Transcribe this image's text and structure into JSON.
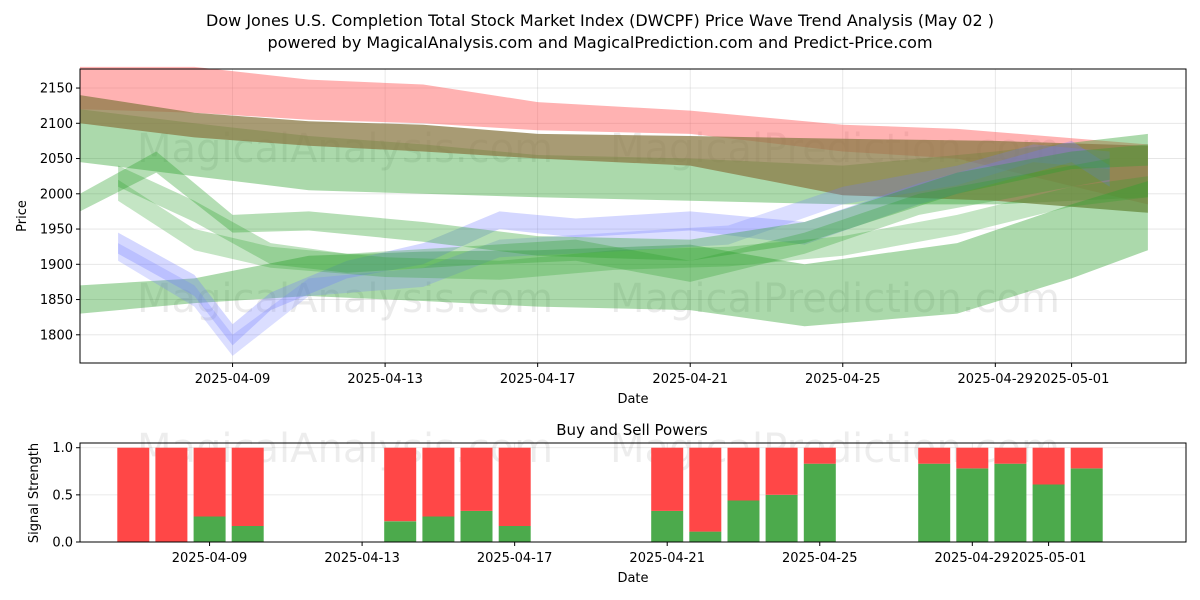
{
  "header": {
    "title_line1": "Dow Jones U.S. Completion Total Stock Market Index (DWCPF) Price Wave Trend Analysis (May 02 )",
    "title_line2": "powered by MagicalAnalysis.com and MagicalPrediction.com and Predict-Price.com"
  },
  "watermarks": [
    "MagicalAnalysis.com",
    "MagicalPrediction.com"
  ],
  "colors": {
    "red_band": "#ff5555",
    "green_band": "#2ca02c",
    "blue_band": "#6f7bff",
    "brown_band": "#8b7a45",
    "buy": "#4caa4c",
    "sell": "#ff4747"
  },
  "chart_data": [
    {
      "type": "area",
      "title": "",
      "xlabel": "Date",
      "ylabel": "Price",
      "xlim": [
        "2025-04-05",
        "2025-05-04"
      ],
      "ylim": [
        1760,
        2177
      ],
      "yticks": [
        1800,
        1850,
        1900,
        1950,
        2000,
        2050,
        2100,
        2150
      ],
      "xticks": [
        "2025-04-09",
        "2025-04-13",
        "2025-04-17",
        "2025-04-21",
        "2025-04-25",
        "2025-04-29",
        "2025-05-01"
      ],
      "grid": true,
      "series": [
        {
          "name": "red-upper-band",
          "color_key": "red_band",
          "opacity": 0.45,
          "x": [
            "2025-04-05",
            "2025-04-08",
            "2025-04-11",
            "2025-04-14",
            "2025-04-17",
            "2025-04-21",
            "2025-04-25",
            "2025-04-28",
            "2025-05-03"
          ],
          "upper": [
            2180,
            2180,
            2162,
            2155,
            2130,
            2118,
            2098,
            2092,
            2070
          ],
          "lower": [
            2120,
            2115,
            2105,
            2100,
            2090,
            2085,
            2060,
            2050,
            1985
          ]
        },
        {
          "name": "green-wide-upper-band",
          "color_key": "green_band",
          "opacity": 0.4,
          "x": [
            "2025-04-05",
            "2025-04-08",
            "2025-04-11",
            "2025-04-14",
            "2025-04-17",
            "2025-04-21",
            "2025-04-25",
            "2025-04-29",
            "2025-05-03"
          ],
          "upper": [
            2120,
            2100,
            2082,
            2070,
            2055,
            2050,
            2040,
            2060,
            2085
          ],
          "lower": [
            2045,
            2025,
            2005,
            2000,
            1995,
            1990,
            1985,
            1985,
            1995
          ]
        },
        {
          "name": "brown-band",
          "color_key": "brown_band",
          "opacity": 0.75,
          "x": [
            "2025-04-05",
            "2025-04-08",
            "2025-04-11",
            "2025-04-14",
            "2025-04-17",
            "2025-04-21",
            "2025-04-25",
            "2025-04-29",
            "2025-05-03"
          ],
          "upper": [
            2140,
            2115,
            2103,
            2098,
            2085,
            2082,
            2078,
            2075,
            2068
          ],
          "lower": [
            2100,
            2080,
            2068,
            2060,
            2050,
            2040,
            1998,
            1990,
            1973
          ]
        },
        {
          "name": "green-lower-wide-band",
          "color_key": "green_band",
          "opacity": 0.4,
          "x": [
            "2025-04-05",
            "2025-04-08",
            "2025-04-11",
            "2025-04-14",
            "2025-04-17",
            "2025-04-21",
            "2025-04-24",
            "2025-04-28",
            "2025-05-01",
            "2025-05-03"
          ],
          "upper": [
            1870,
            1880,
            1912,
            1918,
            1920,
            1928,
            1900,
            1930,
            1985,
            2018
          ],
          "lower": [
            1830,
            1845,
            1855,
            1848,
            1840,
            1835,
            1812,
            1830,
            1880,
            1920
          ]
        },
        {
          "name": "blue-wave-1",
          "color_key": "blue_band",
          "opacity": 0.3,
          "x": [
            "2025-04-06",
            "2025-04-08",
            "2025-04-09",
            "2025-04-10",
            "2025-04-12",
            "2025-04-14",
            "2025-04-16",
            "2025-04-18",
            "2025-04-21",
            "2025-04-24",
            "2025-04-27",
            "2025-04-29",
            "2025-05-01",
            "2025-05-02"
          ],
          "upper": [
            1945,
            1885,
            1815,
            1860,
            1905,
            1930,
            1975,
            1965,
            1975,
            1960,
            2015,
            2045,
            2075,
            2040
          ],
          "lower": [
            1915,
            1855,
            1785,
            1835,
            1880,
            1900,
            1950,
            1938,
            1948,
            1928,
            1985,
            2015,
            2045,
            2010
          ]
        },
        {
          "name": "blue-wave-2",
          "color_key": "blue_band",
          "opacity": 0.25,
          "x": [
            "2025-04-06",
            "2025-04-08",
            "2025-04-09",
            "2025-04-11",
            "2025-04-14",
            "2025-04-16",
            "2025-04-19",
            "2025-04-22",
            "2025-04-25",
            "2025-04-28",
            "2025-04-30",
            "2025-05-02"
          ],
          "upper": [
            1930,
            1870,
            1800,
            1880,
            1895,
            1935,
            1945,
            1955,
            2010,
            2040,
            2070,
            2060
          ],
          "lower": [
            1905,
            1840,
            1770,
            1855,
            1868,
            1910,
            1918,
            1928,
            1985,
            2012,
            2045,
            2035
          ]
        },
        {
          "name": "green-wave-1",
          "color_key": "green_band",
          "opacity": 0.35,
          "x": [
            "2025-04-05",
            "2025-04-07",
            "2025-04-09",
            "2025-04-11",
            "2025-04-14",
            "2025-04-17",
            "2025-04-21",
            "2025-04-24",
            "2025-04-28",
            "2025-05-01",
            "2025-05-03"
          ],
          "upper": [
            2000,
            2060,
            1970,
            1975,
            1960,
            1940,
            1935,
            1960,
            2030,
            2060,
            2070
          ],
          "lower": [
            1975,
            2030,
            1945,
            1948,
            1932,
            1912,
            1905,
            1930,
            2000,
            2035,
            2040
          ]
        },
        {
          "name": "green-wave-2",
          "color_key": "green_band",
          "opacity": 0.3,
          "x": [
            "2025-04-06",
            "2025-04-08",
            "2025-04-10",
            "2025-04-12",
            "2025-04-15",
            "2025-04-18",
            "2025-04-21",
            "2025-04-24",
            "2025-04-27",
            "2025-04-30",
            "2025-05-02"
          ],
          "upper": [
            2040,
            1990,
            1930,
            1915,
            1925,
            1935,
            1905,
            1945,
            2000,
            2030,
            2050
          ],
          "lower": [
            2010,
            1960,
            1900,
            1888,
            1898,
            1905,
            1875,
            1915,
            1970,
            2000,
            2020
          ]
        },
        {
          "name": "green-wave-3",
          "color_key": "green_band",
          "opacity": 0.28,
          "x": [
            "2025-04-06",
            "2025-04-08",
            "2025-04-10",
            "2025-04-13",
            "2025-04-16",
            "2025-04-19",
            "2025-04-22",
            "2025-04-25",
            "2025-04-28",
            "2025-05-01",
            "2025-05-03"
          ],
          "upper": [
            2020,
            1950,
            1925,
            1910,
            1905,
            1920,
            1925,
            1940,
            1970,
            2010,
            2025
          ],
          "lower": [
            1990,
            1920,
            1895,
            1882,
            1878,
            1892,
            1897,
            1912,
            1942,
            1982,
            1995
          ]
        }
      ]
    },
    {
      "type": "bar",
      "title": "Buy and Sell Powers",
      "xlabel": "Date",
      "ylabel": "Signal Strength",
      "xlim": [
        "2025-04-05",
        "2025-05-04"
      ],
      "ylim": [
        0,
        1.05
      ],
      "yticks": [
        "0.0",
        "0.5",
        "1.0"
      ],
      "xticks": [
        "2025-04-09",
        "2025-04-13",
        "2025-04-17",
        "2025-04-21",
        "2025-04-25",
        "2025-04-29",
        "2025-05-01"
      ],
      "grid": true,
      "categories": [
        "2025-04-07",
        "2025-04-08",
        "2025-04-09",
        "2025-04-10",
        "2025-04-14",
        "2025-04-15",
        "2025-04-16",
        "2025-04-17",
        "2025-04-21",
        "2025-04-22",
        "2025-04-23",
        "2025-04-24",
        "2025-04-25",
        "2025-04-28",
        "2025-04-29",
        "2025-04-30",
        "2025-05-01",
        "2025-05-02"
      ],
      "series": [
        {
          "name": "Buy",
          "color_key": "buy",
          "values": [
            0.0,
            0.0,
            0.27,
            0.17,
            0.22,
            0.27,
            0.33,
            0.17,
            0.33,
            0.11,
            0.44,
            0.5,
            0.83,
            0.83,
            0.78,
            0.83,
            0.61,
            0.78
          ]
        },
        {
          "name": "Sell",
          "color_key": "sell",
          "values": [
            1.0,
            1.0,
            0.73,
            0.83,
            0.78,
            0.73,
            0.67,
            0.83,
            0.67,
            0.89,
            0.56,
            0.5,
            0.17,
            0.17,
            0.22,
            0.17,
            0.39,
            0.22
          ]
        }
      ]
    }
  ]
}
